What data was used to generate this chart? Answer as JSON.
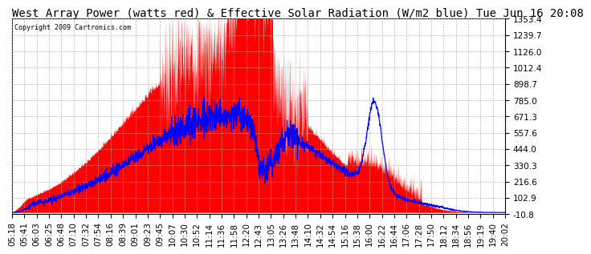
{
  "title": "West Array Power (watts red) & Effective Solar Radiation (W/m2 blue) Tue Jun 16 20:08",
  "copyright": "Copyright 2009 Cartronics.com",
  "y_min": -10.8,
  "y_max": 1353.4,
  "y_ticks": [
    1353.4,
    1239.7,
    1126.0,
    1012.4,
    898.7,
    785.0,
    671.3,
    557.6,
    444.0,
    330.3,
    216.6,
    102.9,
    -10.8
  ],
  "x_labels": [
    "05:18",
    "05:41",
    "06:03",
    "06:25",
    "06:48",
    "07:10",
    "07:32",
    "07:54",
    "08:16",
    "08:39",
    "09:01",
    "09:23",
    "09:45",
    "10:07",
    "10:30",
    "10:52",
    "11:14",
    "11:36",
    "11:58",
    "12:20",
    "12:43",
    "13:05",
    "13:26",
    "13:48",
    "14:10",
    "14:32",
    "14:54",
    "15:16",
    "15:38",
    "16:00",
    "16:22",
    "16:44",
    "17:06",
    "17:28",
    "17:50",
    "18:12",
    "18:34",
    "18:56",
    "19:19",
    "19:40",
    "20:02"
  ],
  "background_color": "#ffffff",
  "grid_color": "#aaaaaa",
  "red_color": "#ff0000",
  "blue_color": "#0000ff",
  "title_fontsize": 10,
  "tick_fontsize": 7.5,
  "n_points": 2000
}
